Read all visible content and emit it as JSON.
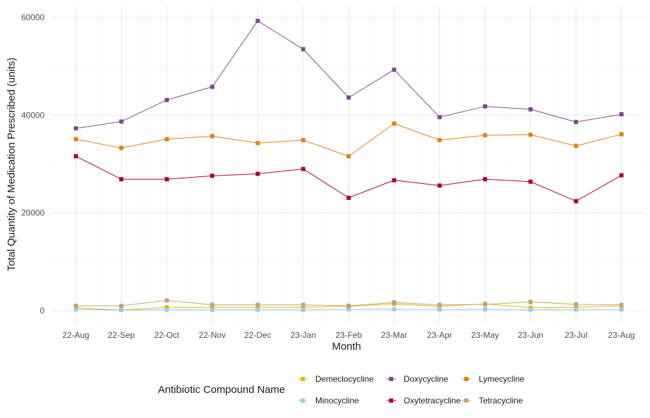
{
  "chart_data": {
    "type": "line",
    "title": "",
    "xlabel": "Month",
    "ylabel": "Total Quantity of Medication Prescribed (units)",
    "categories": [
      "22-Aug",
      "22-Sep",
      "22-Oct",
      "22-Nov",
      "22-Dec",
      "23-Jan",
      "23-Feb",
      "23-Mar",
      "23-Apr",
      "23-May",
      "23-Jun",
      "23-Jul",
      "23-Aug"
    ],
    "ylim": [
      0,
      60000
    ],
    "yticks": [
      0,
      20000,
      40000,
      60000
    ],
    "grid": true,
    "legend": {
      "title": "Antibiotic Compound Name",
      "placement": "bottom"
    },
    "series": [
      {
        "name": "Demeclocycline",
        "color": "#e6b800",
        "values": [
          600,
          150,
          700,
          700,
          700,
          700,
          900,
          1400,
          900,
          1400,
          600,
          700,
          1000
        ]
      },
      {
        "name": "Doxycycline",
        "color": "#7e4c8e",
        "values": [
          37300,
          38700,
          43100,
          45800,
          59300,
          53500,
          43600,
          49300,
          39600,
          41800,
          41200,
          38600,
          40200
        ]
      },
      {
        "name": "Lymecycline",
        "color": "#e08214",
        "values": [
          35100,
          33300,
          35100,
          35700,
          34300,
          34900,
          31600,
          38300,
          34900,
          35900,
          36000,
          33700,
          36100
        ]
      },
      {
        "name": "Minocycline",
        "color": "#9ecae1",
        "values": [
          300,
          150,
          200,
          200,
          200,
          200,
          300,
          300,
          250,
          300,
          200,
          250,
          250
        ]
      },
      {
        "name": "Oxytetracycline",
        "color": "#b2002d",
        "values": [
          31600,
          26900,
          26900,
          27600,
          28000,
          29000,
          23100,
          26700,
          25600,
          26900,
          26400,
          22400,
          27700
        ]
      },
      {
        "name": "Tetracycline",
        "color": "#c4a56a",
        "values": [
          1000,
          1000,
          2100,
          1200,
          1200,
          1200,
          1000,
          1700,
          1200,
          1300,
          1800,
          1300,
          1200
        ]
      }
    ]
  }
}
